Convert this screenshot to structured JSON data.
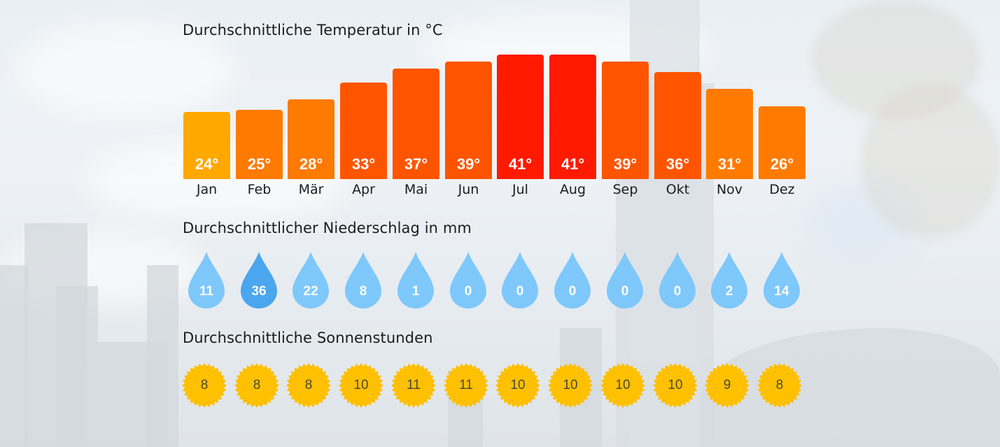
{
  "temperature": {
    "title": "Durchschnittliche Temperatur in °C",
    "months": [
      "Jan",
      "Feb",
      "Mär",
      "Apr",
      "Mai",
      "Jun",
      "Jul",
      "Aug",
      "Sep",
      "Okt",
      "Nov",
      "Dez"
    ],
    "values": [
      "24°",
      "25°",
      "28°",
      "33°",
      "37°",
      "39°",
      "41°",
      "41°",
      "39°",
      "36°",
      "31°",
      "26°"
    ],
    "colors": [
      "#ffa800",
      "#ff7a00",
      "#ff7a00",
      "#ff5500",
      "#ff5500",
      "#ff5500",
      "#ff1a00",
      "#ff1a00",
      "#ff5500",
      "#ff5500",
      "#ff7a00",
      "#ff7a00"
    ]
  },
  "precipitation": {
    "title": "Durchschnittlicher Niederschlag in mm",
    "values": [
      "11",
      "36",
      "22",
      "8",
      "1",
      "0",
      "0",
      "0",
      "0",
      "0",
      "2",
      "14"
    ],
    "colors": {
      "normal": "#7ec8fb",
      "highlight": "#4aa6ef"
    }
  },
  "sunshine": {
    "title": "Durchschnittliche Sonnenstunden",
    "values": [
      "8",
      "8",
      "8",
      "10",
      "11",
      "11",
      "10",
      "10",
      "10",
      "10",
      "9",
      "8"
    ],
    "color": "#ffc000"
  },
  "chart_data": [
    {
      "type": "bar",
      "title": "Durchschnittliche Temperatur in °C",
      "categories": [
        "Jan",
        "Feb",
        "Mär",
        "Apr",
        "Mai",
        "Jun",
        "Jul",
        "Aug",
        "Sep",
        "Okt",
        "Nov",
        "Dez"
      ],
      "values": [
        24,
        25,
        28,
        33,
        37,
        39,
        41,
        41,
        39,
        36,
        31,
        26
      ],
      "xlabel": "",
      "ylabel": "°C",
      "grid": false
    },
    {
      "type": "table",
      "title": "Durchschnittlicher Niederschlag in mm",
      "categories": [
        "Jan",
        "Feb",
        "Mär",
        "Apr",
        "Mai",
        "Jun",
        "Jul",
        "Aug",
        "Sep",
        "Okt",
        "Nov",
        "Dez"
      ],
      "values": [
        11,
        36,
        22,
        8,
        1,
        0,
        0,
        0,
        0,
        0,
        2,
        14
      ],
      "ylabel": "mm"
    },
    {
      "type": "table",
      "title": "Durchschnittliche Sonnenstunden",
      "categories": [
        "Jan",
        "Feb",
        "Mär",
        "Apr",
        "Mai",
        "Jun",
        "Jul",
        "Aug",
        "Sep",
        "Okt",
        "Nov",
        "Dez"
      ],
      "values": [
        8,
        8,
        8,
        10,
        11,
        11,
        10,
        10,
        10,
        10,
        9,
        8
      ],
      "ylabel": "Stunden"
    }
  ]
}
